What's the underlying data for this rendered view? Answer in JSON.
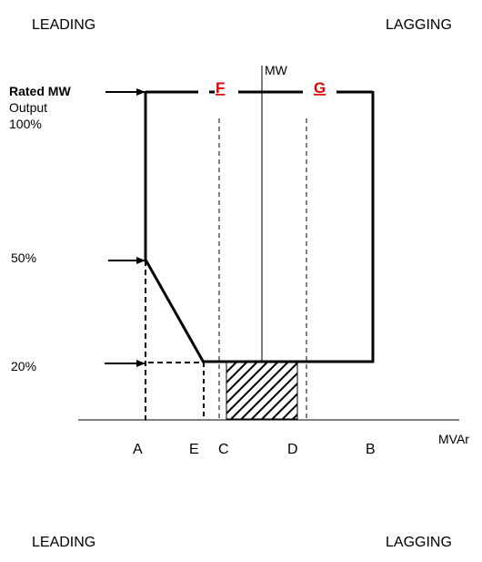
{
  "header": {
    "left": "LEADING",
    "right": "LAGGING"
  },
  "footer": {
    "left": "LEADING",
    "right": "LAGGING"
  },
  "y_labels": {
    "rated_line1": "Rated MW",
    "rated_line2": "Output",
    "rated_line3": "100%",
    "fifty": "50%",
    "twenty": "20%"
  },
  "axis": {
    "y_title": "MW",
    "x_title": "MVAr"
  },
  "x_points": {
    "a": "A",
    "e": "E",
    "c": "C",
    "d": "D",
    "b": "B"
  },
  "regions": {
    "f": "F",
    "g": "G"
  },
  "colors": {
    "line": "#000000",
    "label_red": "#e00000"
  }
}
